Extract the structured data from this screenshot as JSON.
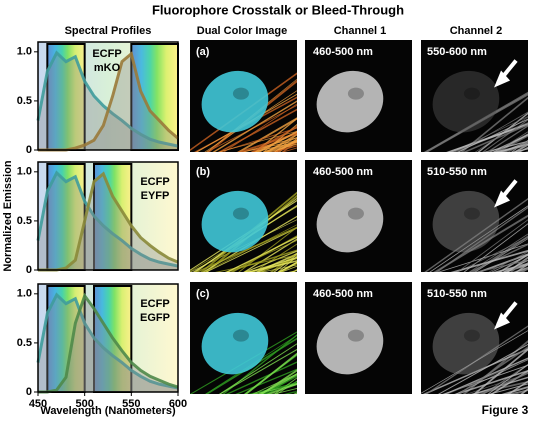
{
  "title": "Fluorophore Crosstalk or Bleed-Through",
  "column_headers": [
    "Spectral Profiles",
    "Dual Color Image",
    "Channel 1",
    "Channel 2"
  ],
  "y_label": "Normalized Emission",
  "x_label": "Wavelength (Nanometers)",
  "figure_label": "Figure 3",
  "images": [
    {
      "label": "(a)",
      "channel1": "460-500 nm",
      "channel2": "550-600 nm"
    },
    {
      "label": "(b)",
      "channel1": "460-500 nm",
      "channel2": "510-550 nm"
    },
    {
      "label": "(c)",
      "channel1": "460-500 nm",
      "channel2": "510-550 nm"
    }
  ],
  "chart_data": [
    {
      "type": "line",
      "x": [
        450,
        460,
        470,
        480,
        490,
        500,
        510,
        520,
        530,
        540,
        550,
        560,
        570,
        580,
        590,
        600
      ],
      "series": [
        {
          "name": "ECFP",
          "color": "#3f9c9c",
          "values": [
            0.3,
            0.8,
            0.99,
            0.9,
            0.95,
            0.7,
            0.55,
            0.45,
            0.37,
            0.3,
            0.22,
            0.16,
            0.11,
            0.08,
            0.06,
            0.04
          ]
        },
        {
          "name": "mKO",
          "color": "#9a7a3a",
          "values": [
            0,
            0,
            0,
            0,
            0.02,
            0.05,
            0.1,
            0.25,
            0.55,
            0.9,
            0.98,
            0.6,
            0.4,
            0.3,
            0.2,
            0.12
          ]
        }
      ],
      "filters": [
        [
          460,
          500
        ],
        [
          550,
          600
        ]
      ],
      "xlim": [
        450,
        600
      ],
      "ylim": [
        0,
        1.1
      ],
      "yticks": [
        0,
        0.5,
        {
          "value": 1,
          "label": "1.0"
        }
      ]
    },
    {
      "type": "line",
      "x": [
        450,
        460,
        470,
        480,
        490,
        500,
        510,
        520,
        530,
        540,
        550,
        560,
        570,
        580,
        590,
        600
      ],
      "series": [
        {
          "name": "ECFP",
          "color": "#3f9c9c",
          "values": [
            0.3,
            0.8,
            0.99,
            0.9,
            0.95,
            0.7,
            0.55,
            0.45,
            0.37,
            0.3,
            0.22,
            0.16,
            0.11,
            0.08,
            0.06,
            0.04
          ]
        },
        {
          "name": "EYFP",
          "color": "#8a8a3a",
          "values": [
            0,
            0,
            0,
            0.02,
            0.1,
            0.5,
            0.9,
            0.98,
            0.75,
            0.6,
            0.45,
            0.33,
            0.25,
            0.18,
            0.12,
            0.08
          ]
        }
      ],
      "filters": [
        [
          460,
          500
        ],
        [
          510,
          550
        ]
      ],
      "xlim": [
        450,
        600
      ],
      "ylim": [
        0,
        1.1
      ],
      "yticks": [
        0,
        0.5,
        {
          "value": 1,
          "label": "1.0"
        }
      ]
    },
    {
      "type": "line",
      "x": [
        450,
        460,
        470,
        480,
        490,
        500,
        510,
        520,
        530,
        540,
        550,
        560,
        570,
        580,
        590,
        600
      ],
      "series": [
        {
          "name": "ECFP",
          "color": "#3f9c9c",
          "values": [
            0.3,
            0.8,
            0.99,
            0.9,
            0.95,
            0.7,
            0.55,
            0.45,
            0.37,
            0.3,
            0.22,
            0.16,
            0.11,
            0.08,
            0.06,
            0.04
          ]
        },
        {
          "name": "EGFP",
          "color": "#4f8a4a",
          "values": [
            0,
            0,
            0.02,
            0.15,
            0.7,
            0.98,
            0.85,
            0.7,
            0.55,
            0.42,
            0.3,
            0.22,
            0.16,
            0.12,
            0.08,
            0.05
          ]
        }
      ],
      "filters": [
        [
          460,
          500
        ],
        [
          510,
          550
        ]
      ],
      "xlim": [
        450,
        600
      ],
      "ylim": [
        0,
        1.1
      ],
      "yticks": [
        0,
        0.5,
        {
          "value": 1,
          "label": "1.0"
        }
      ],
      "xticks": [
        450,
        500,
        550,
        600
      ]
    }
  ]
}
